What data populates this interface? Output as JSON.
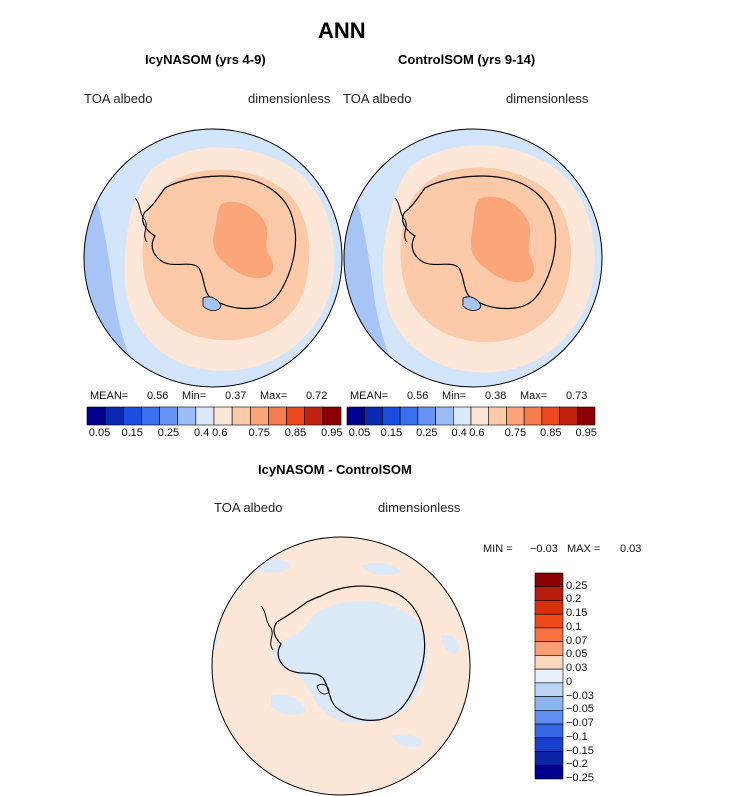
{
  "title": "ANN",
  "panels": [
    {
      "title": "IcyNASOM (yrs 4-9)",
      "left_label": "TOA albedo",
      "right_label": "dimensionless",
      "stats": {
        "mean_label": "MEAN=",
        "mean": "0.56",
        "min_label": "Min=",
        "min": "0.37",
        "max_label": "Max=",
        "max": "0.72"
      }
    },
    {
      "title": "ControlSOM (yrs 9-14)",
      "left_label": "TOA albedo",
      "right_label": "dimensionless",
      "stats": {
        "mean_label": "MEAN=",
        "mean": "0.56",
        "min_label": "Min=",
        "min": "0.38",
        "max_label": "Max=",
        "max": "0.73"
      }
    }
  ],
  "abs_colorbar": {
    "colors": [
      "#00008b",
      "#0a2ab0",
      "#1a4de0",
      "#3a6ff0",
      "#6a93f5",
      "#9dbdf7",
      "#d9e8fb",
      "#fde7d8",
      "#fcc9a9",
      "#fba578",
      "#f77c4e",
      "#ec4a1e",
      "#c1230e",
      "#8b0000"
    ],
    "ticks": [
      "0.05",
      "0.15",
      "0.25",
      "0.4",
      "0.6",
      "0.75",
      "0.85",
      "0.95"
    ]
  },
  "diff_panel": {
    "title": "IcyNASOM - ControlSOM",
    "left_label": "TOA albedo",
    "right_label": "dimensionless",
    "min_label": "MIN =",
    "min": "−0.03",
    "max_label": "MAX =",
    "max": "0.03"
  },
  "diff_colorbar": {
    "colors": [
      "#8b0000",
      "#b71c0c",
      "#d6300f",
      "#f04a1a",
      "#f8733f",
      "#fb9e72",
      "#fdd7be",
      "#e8f1fb",
      "#bcd4f6",
      "#8fb4f2",
      "#5f8ff0",
      "#3567e4",
      "#1840cc",
      "#0c24a8",
      "#00008b"
    ],
    "ticks": [
      "0.25",
      "0.2",
      "0.15",
      "0.1",
      "0.07",
      "0.05",
      "0.03",
      "0",
      "−0.03",
      "−0.05",
      "−0.07",
      "−0.1",
      "−0.15",
      "−0.2",
      "−0.25"
    ]
  },
  "colors": {
    "ocean_light": "#d3e5fb",
    "ocean_mid": "#a6c4f6",
    "ice_light": "#fde7d8",
    "land_mid": "#fcc9a9",
    "land_high": "#fba578",
    "diff_pos": "#fde7d8",
    "diff_neg": "#dce9f9"
  }
}
